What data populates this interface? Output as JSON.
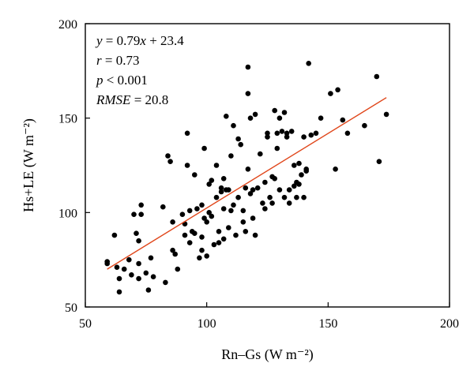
{
  "chart_data": {
    "type": "scatter",
    "xlabel": "Rn–Gs (W m⁻²)",
    "ylabel": "Hs+LE (W m⁻²)",
    "xlim": [
      50,
      200
    ],
    "ylim": [
      50,
      200
    ],
    "xticks": [
      50,
      100,
      150,
      200
    ],
    "yticks": [
      50,
      100,
      150,
      200
    ],
    "grid": false,
    "fit_line": {
      "slope": 0.79,
      "intercept": 23.4,
      "x_range": [
        59,
        174
      ],
      "color": "#e0461a"
    },
    "annotation_lines": [
      [
        {
          "t": "y",
          "i": true
        },
        {
          "t": " = 0.79",
          "i": false
        },
        {
          "t": "x",
          "i": true
        },
        {
          "t": " + 23.4",
          "i": false
        }
      ],
      [
        {
          "t": "r",
          "i": true
        },
        {
          "t": " = 0.73",
          "i": false
        }
      ],
      [
        {
          "t": "p",
          "i": true
        },
        {
          "t": " < 0.001",
          "i": false
        }
      ],
      [
        {
          "t": "RMSE",
          "i": true
        },
        {
          "t": " = 20.8",
          "i": false
        }
      ]
    ],
    "point_color": "#000000",
    "points": [
      [
        59,
        74
      ],
      [
        59,
        73
      ],
      [
        62,
        88
      ],
      [
        63,
        71
      ],
      [
        64,
        65
      ],
      [
        64,
        58
      ],
      [
        66,
        70
      ],
      [
        68,
        75
      ],
      [
        69,
        67
      ],
      [
        70,
        99
      ],
      [
        71,
        89
      ],
      [
        72,
        73
      ],
      [
        72,
        85
      ],
      [
        72,
        65
      ],
      [
        73,
        104
      ],
      [
        73,
        99
      ],
      [
        75,
        68
      ],
      [
        76,
        59
      ],
      [
        77,
        76
      ],
      [
        78,
        66
      ],
      [
        82,
        103
      ],
      [
        83,
        63
      ],
      [
        84,
        130
      ],
      [
        85,
        127
      ],
      [
        86,
        95
      ],
      [
        86,
        80
      ],
      [
        87,
        78
      ],
      [
        88,
        70
      ],
      [
        90,
        99
      ],
      [
        91,
        88
      ],
      [
        91,
        94
      ],
      [
        92,
        142
      ],
      [
        92,
        125
      ],
      [
        93,
        101
      ],
      [
        93,
        84
      ],
      [
        94,
        90
      ],
      [
        95,
        120
      ],
      [
        95,
        89
      ],
      [
        96,
        102
      ],
      [
        97,
        76
      ],
      [
        98,
        104
      ],
      [
        98,
        87
      ],
      [
        98,
        80
      ],
      [
        99,
        134
      ],
      [
        99,
        97
      ],
      [
        100,
        77
      ],
      [
        100,
        95
      ],
      [
        101,
        100
      ],
      [
        101,
        115
      ],
      [
        102,
        117
      ],
      [
        102,
        98
      ],
      [
        103,
        83
      ],
      [
        104,
        125
      ],
      [
        104,
        108
      ],
      [
        105,
        84
      ],
      [
        105,
        90
      ],
      [
        106,
        113
      ],
      [
        106,
        111
      ],
      [
        107,
        118
      ],
      [
        107,
        86
      ],
      [
        107,
        102
      ],
      [
        108,
        151
      ],
      [
        108,
        112
      ],
      [
        109,
        112
      ],
      [
        109,
        92
      ],
      [
        110,
        130
      ],
      [
        110,
        101
      ],
      [
        111,
        146
      ],
      [
        111,
        104
      ],
      [
        112,
        88
      ],
      [
        113,
        139
      ],
      [
        113,
        108
      ],
      [
        114,
        136
      ],
      [
        115,
        101
      ],
      [
        115,
        95
      ],
      [
        116,
        113
      ],
      [
        116,
        90
      ],
      [
        117,
        163
      ],
      [
        117,
        177
      ],
      [
        117,
        123
      ],
      [
        118,
        150
      ],
      [
        118,
        110
      ],
      [
        119,
        97
      ],
      [
        119,
        112
      ],
      [
        120,
        88
      ],
      [
        120,
        152
      ],
      [
        121,
        113
      ],
      [
        122,
        131
      ],
      [
        123,
        105
      ],
      [
        124,
        102
      ],
      [
        124,
        116
      ],
      [
        125,
        140
      ],
      [
        125,
        142
      ],
      [
        126,
        108
      ],
      [
        127,
        119
      ],
      [
        127,
        105
      ],
      [
        128,
        118
      ],
      [
        128,
        154
      ],
      [
        129,
        134
      ],
      [
        129,
        142
      ],
      [
        130,
        112
      ],
      [
        130,
        150
      ],
      [
        131,
        143
      ],
      [
        132,
        153
      ],
      [
        132,
        108
      ],
      [
        133,
        142
      ],
      [
        133,
        140
      ],
      [
        134,
        112
      ],
      [
        134,
        105
      ],
      [
        135,
        143
      ],
      [
        136,
        114
      ],
      [
        136,
        125
      ],
      [
        137,
        108
      ],
      [
        137,
        116
      ],
      [
        138,
        126
      ],
      [
        138,
        115
      ],
      [
        139,
        120
      ],
      [
        140,
        108
      ],
      [
        140,
        140
      ],
      [
        141,
        123
      ],
      [
        141,
        122
      ],
      [
        142,
        179
      ],
      [
        143,
        141
      ],
      [
        145,
        142
      ],
      [
        147,
        150
      ],
      [
        151,
        163
      ],
      [
        153,
        123
      ],
      [
        154,
        165
      ],
      [
        156,
        149
      ],
      [
        158,
        142
      ],
      [
        165,
        146
      ],
      [
        170,
        172
      ],
      [
        171,
        127
      ],
      [
        174,
        152
      ]
    ]
  }
}
